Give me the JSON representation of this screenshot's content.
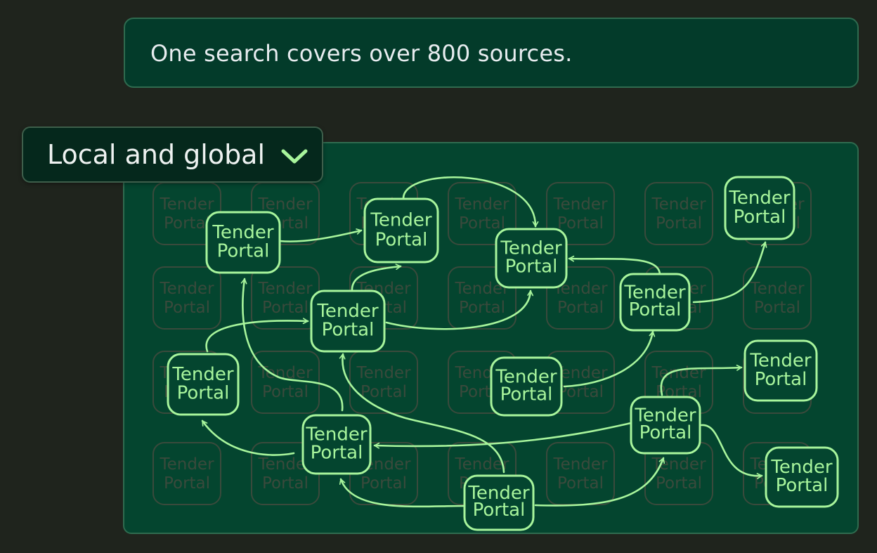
{
  "banner": {
    "text": "One search covers over 800 sources."
  },
  "dropdown": {
    "label": "Local and global",
    "icon": "chevron-down-icon"
  },
  "graph": {
    "node_line1": "Tender",
    "node_line2": "Portal",
    "accent_color": "#a8f59c"
  }
}
